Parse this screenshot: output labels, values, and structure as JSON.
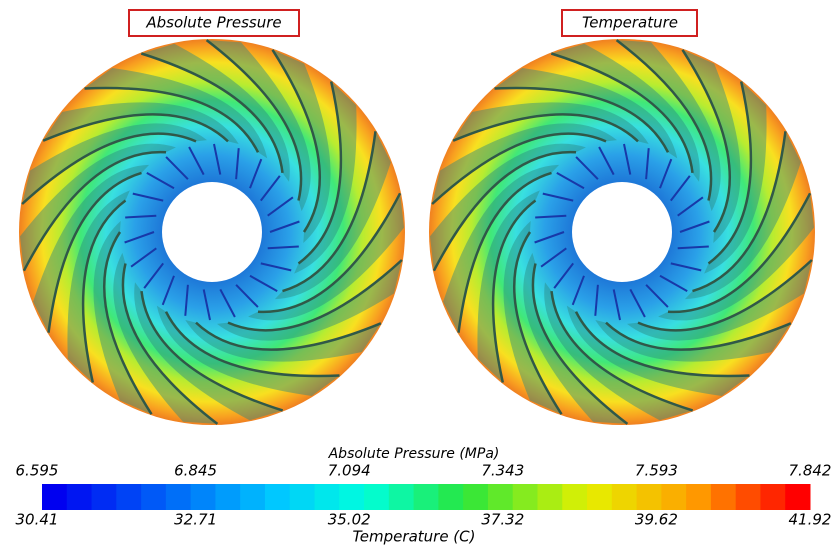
{
  "panels": [
    {
      "title": "Absolute Pressure"
    },
    {
      "title": "Temperature"
    }
  ],
  "colorbar": {
    "top_title": "Absolute Pressure (MPa)",
    "top_ticks": [
      "6.595",
      "6.845",
      "7.094",
      "7.343",
      "7.593",
      "7.842"
    ],
    "bottom_ticks": [
      "30.41",
      "32.71",
      "35.02",
      "37.32",
      "39.62",
      "41.92"
    ],
    "bottom_title": "Temperature (C)"
  }
}
